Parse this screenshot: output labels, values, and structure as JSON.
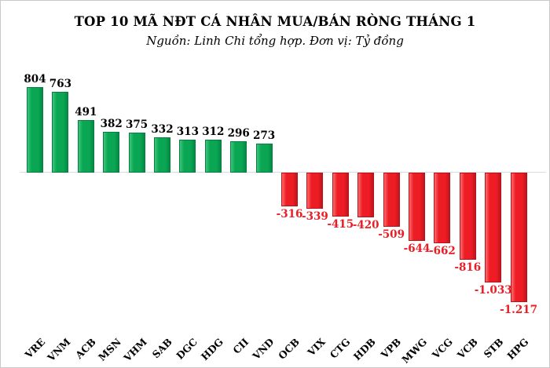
{
  "title": "TOP 10 MÃ NĐT CÁ NHÂN MUA/BÁN RÒNG THÁNG 1",
  "subtitle": "Nguồn: Linh Chi tổng hợp. Đơn vị: Tỷ đồng",
  "colors": {
    "positive_bar": "#0ba653",
    "negative_bar": "#ee1c24",
    "positive_label": "#000000",
    "negative_label": "#ec1c24",
    "axis_line": "#dcdcdc",
    "background": "#ffffff",
    "canvas_border": "#c9c9c9"
  },
  "chart_data": {
    "type": "bar",
    "title": "TOP 10 MÃ NĐT CÁ NHÂN MUA/BÁN RÒNG THÁNG 1",
    "subtitle": "Nguồn: Linh Chi tổng hợp. Đơn vị: Tỷ đồng",
    "unit": "Tỷ đồng",
    "xlabel": "",
    "ylabel": "",
    "ylim": [
      -1300,
      900
    ],
    "grid": false,
    "legend": false,
    "categories": [
      "VRE",
      "VNM",
      "ACB",
      "MSN",
      "VHM",
      "SAB",
      "DGC",
      "HDG",
      "CII",
      "VND",
      "OCB",
      "VIX",
      "CTG",
      "HDB",
      "VPB",
      "MWG",
      "VCG",
      "VCB",
      "STB",
      "HPG"
    ],
    "values": [
      804,
      763,
      491,
      382,
      375,
      332,
      313,
      312,
      296,
      273,
      -316,
      -339,
      -415,
      -420,
      -509,
      -644,
      -662,
      -816,
      -1033,
      -1217
    ],
    "value_labels": [
      "804",
      "763",
      "491",
      "382",
      "375",
      "332",
      "313",
      "312",
      "296",
      "273",
      "-316",
      "-339",
      "-415",
      "-420",
      "-509",
      "-644",
      "-662",
      "-816",
      "-1.033",
      "-1.217"
    ]
  }
}
